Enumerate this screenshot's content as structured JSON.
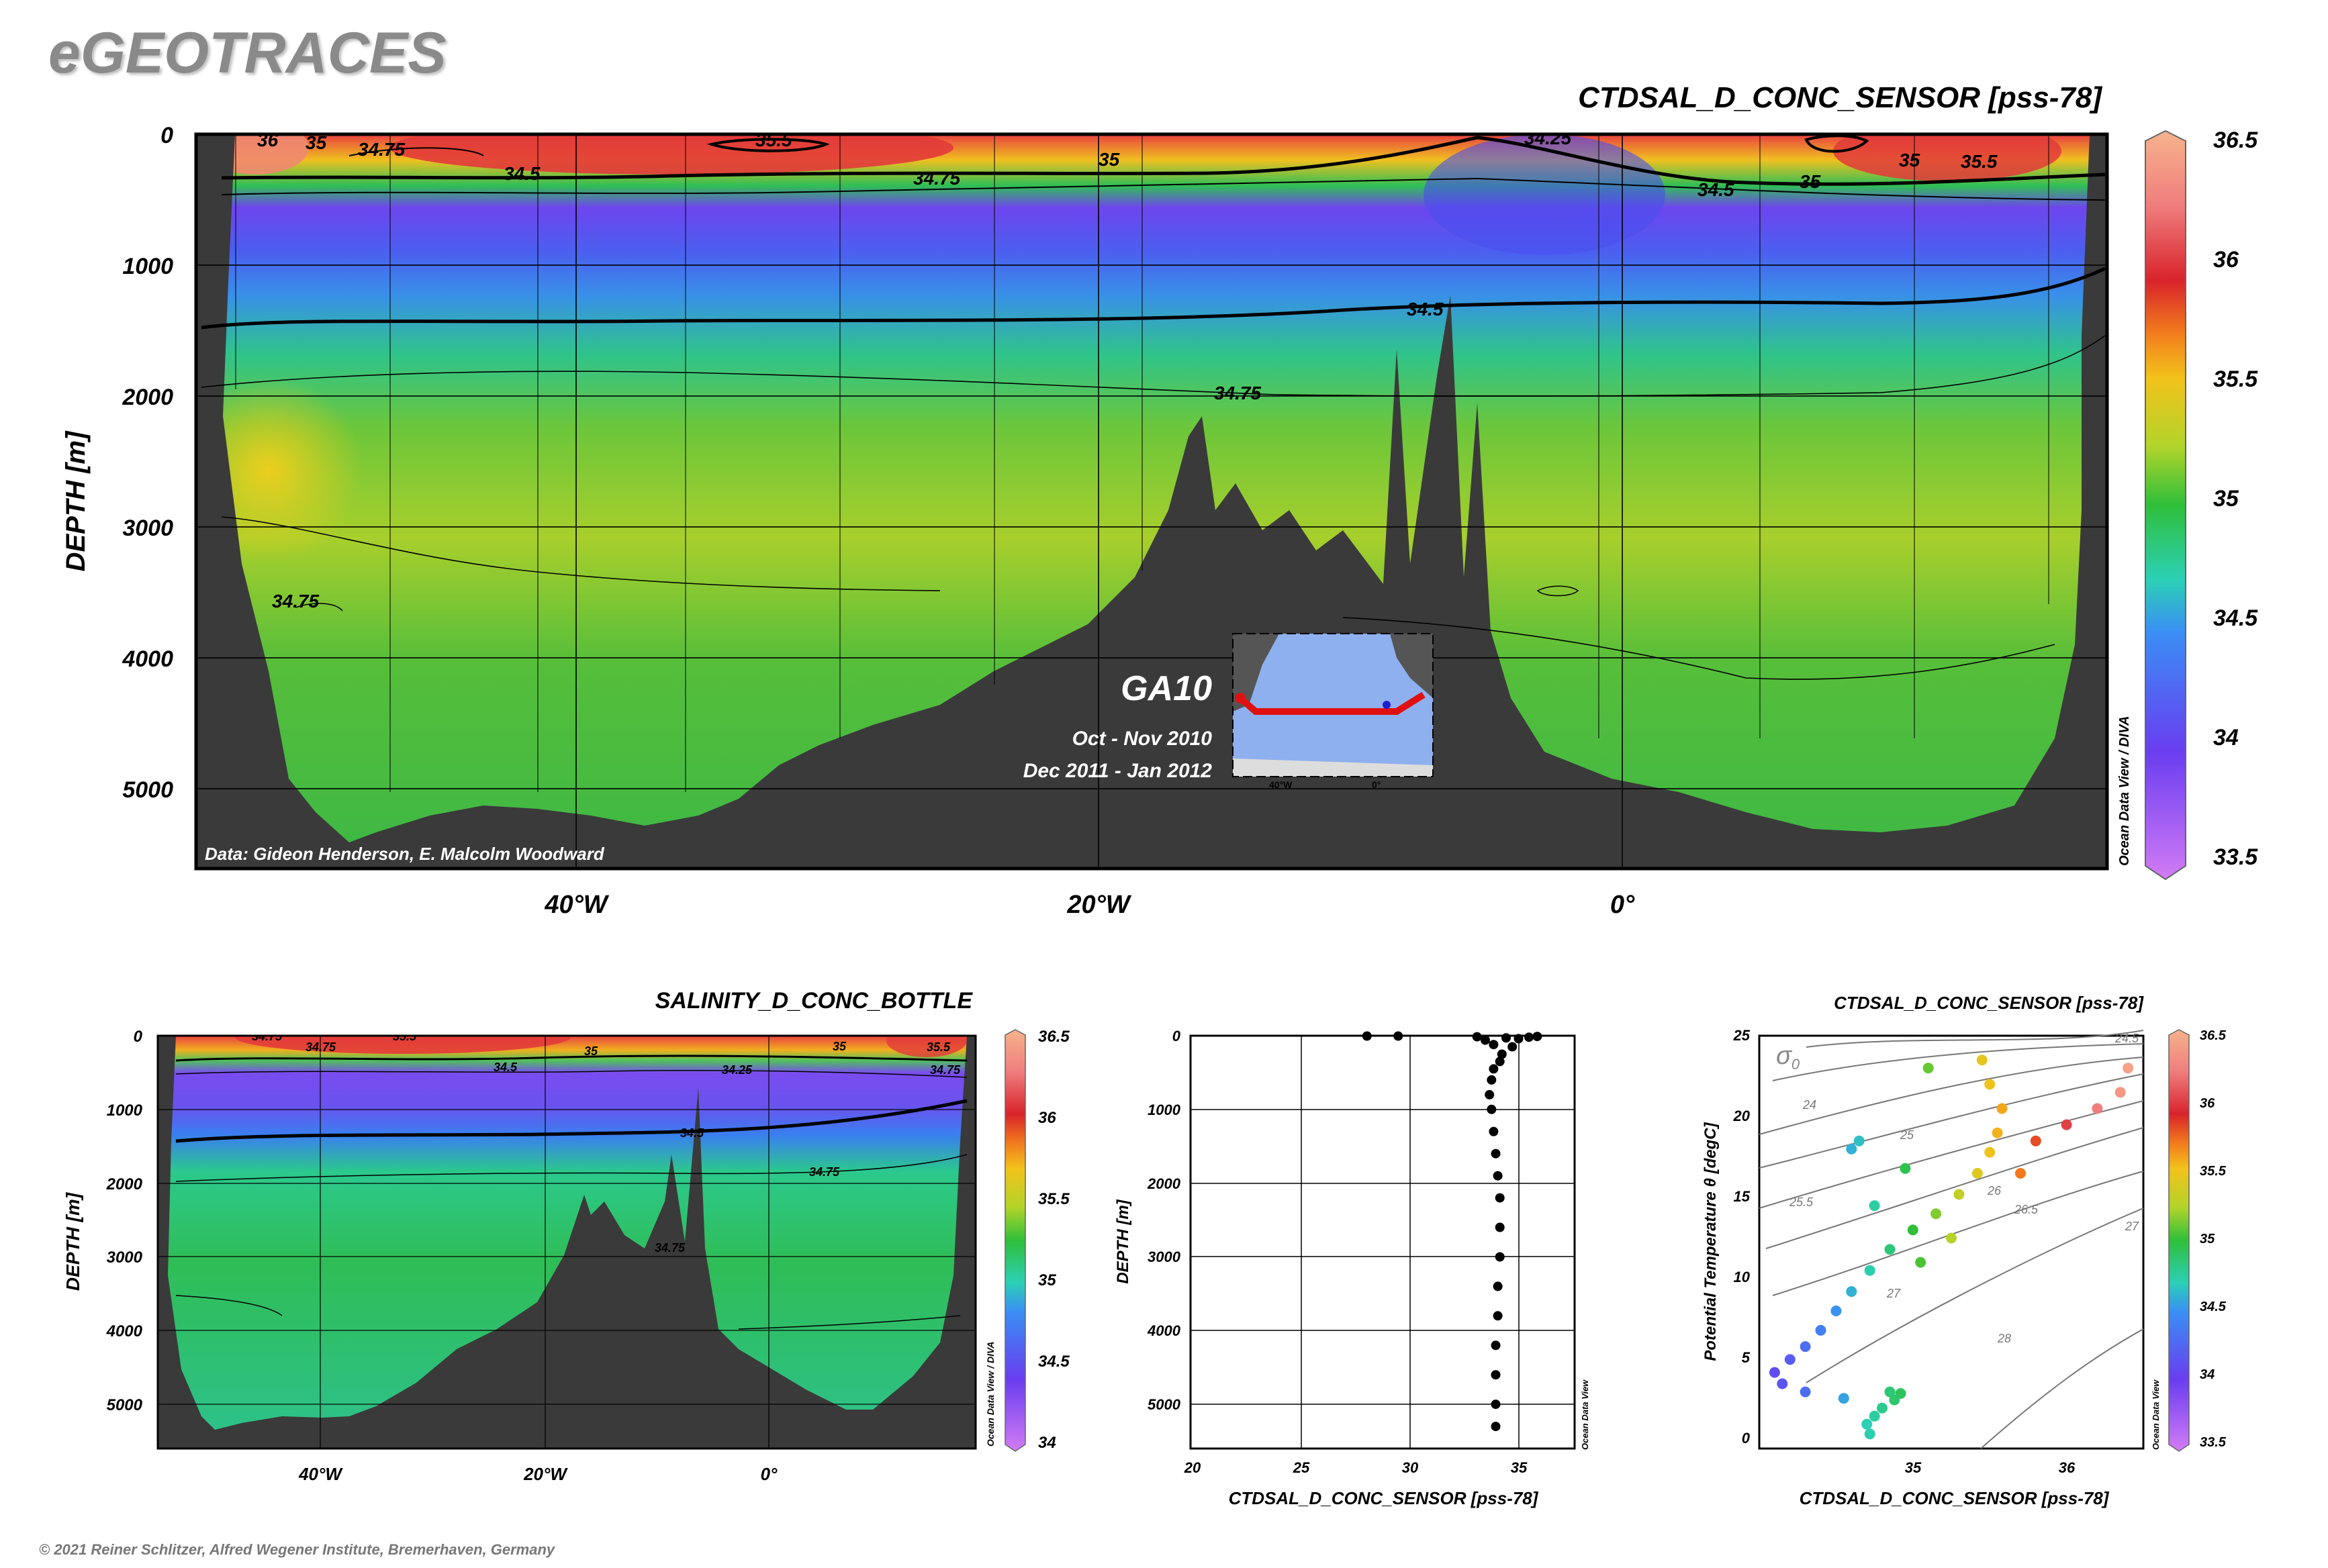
{
  "brand": {
    "logo": "eGEOTRACES"
  },
  "footer": {
    "copyright": "© 2021 Reiner Schlitzer, Alfred Wegener Institute, Bremerhaven, Germany"
  },
  "inset_map": {
    "section": "GA10",
    "cruise_1": "Oct - Nov 2010",
    "cruise_2": "Dec 2011 - Jan 2012",
    "ticks": [
      "40°W",
      "0°"
    ]
  },
  "chart_data": [
    {
      "type": "heatmap",
      "title": "CTDSAL_D_CONC_SENSOR [pss-78]",
      "ylabel": "DEPTH [m]",
      "y_ticks": [
        "0",
        "1000",
        "2000",
        "3000",
        "4000",
        "5000"
      ],
      "x_ticks": [
        "40°W",
        "20°W",
        "0°"
      ],
      "ylim": [
        5600,
        0
      ],
      "xlim": [
        -54,
        18
      ],
      "credit": "Data: Gideon Henderson, E. Malcolm Woodward",
      "watermark": "Ocean Data View / DIVA",
      "colorbar": {
        "min": 33.5,
        "max": 36.5,
        "ticks": [
          "33.5",
          "34",
          "34.5",
          "35",
          "35.5",
          "36",
          "36.5"
        ]
      },
      "contour_labels": [
        "36",
        "35",
        "34.75",
        "35.5",
        "35",
        "34.25",
        "35",
        "35.5",
        "34.5",
        "34.75",
        "35",
        "34.5",
        "34.75",
        "34.5",
        "34.75",
        "34.75"
      ]
    },
    {
      "type": "heatmap",
      "title": "SALINITY_D_CONC_BOTTLE",
      "ylabel": "DEPTH [m]",
      "y_ticks": [
        "0",
        "1000",
        "2000",
        "3000",
        "4000",
        "5000"
      ],
      "x_ticks": [
        "40°W",
        "20°W",
        "0°"
      ],
      "ylim": [
        5600,
        0
      ],
      "xlim": [
        -54,
        18
      ],
      "watermark": "Ocean Data View / DIVA",
      "colorbar": {
        "min": 34,
        "max": 36.5,
        "ticks": [
          "34",
          "34.5",
          "35",
          "35.5",
          "36",
          "36.5"
        ]
      },
      "contour_labels": [
        "34.75",
        "35.5",
        "34.75",
        "35",
        "34.5",
        "34.25",
        "35",
        "35.5",
        "34.75",
        "34.5",
        "34.75",
        "34.75"
      ]
    },
    {
      "type": "scatter",
      "xlabel": "CTDSAL_D_CONC_SENSOR [pss-78]",
      "ylabel": "DEPTH [m]",
      "x_ticks": [
        "20",
        "25",
        "30",
        "35"
      ],
      "y_ticks": [
        "0",
        "1000",
        "2000",
        "3000",
        "4000",
        "5000"
      ],
      "xlim": [
        20,
        38.5
      ],
      "ylim": [
        5600,
        0
      ],
      "watermark": "Ocean Data View",
      "points": [
        {
          "x": 28.5,
          "y": 5
        },
        {
          "x": 30.0,
          "y": 5
        },
        {
          "x": 33.8,
          "y": 15
        },
        {
          "x": 34.2,
          "y": 60
        },
        {
          "x": 34.6,
          "y": 120
        },
        {
          "x": 35.2,
          "y": 30
        },
        {
          "x": 35.8,
          "y": 40
        },
        {
          "x": 36.3,
          "y": 20
        },
        {
          "x": 36.7,
          "y": 10
        },
        {
          "x": 35.5,
          "y": 150
        },
        {
          "x": 35.0,
          "y": 250
        },
        {
          "x": 34.9,
          "y": 350
        },
        {
          "x": 34.6,
          "y": 450
        },
        {
          "x": 34.5,
          "y": 600
        },
        {
          "x": 34.4,
          "y": 800
        },
        {
          "x": 34.5,
          "y": 1000
        },
        {
          "x": 34.6,
          "y": 1300
        },
        {
          "x": 34.7,
          "y": 1600
        },
        {
          "x": 34.8,
          "y": 1900
        },
        {
          "x": 34.9,
          "y": 2200
        },
        {
          "x": 34.9,
          "y": 2600
        },
        {
          "x": 34.9,
          "y": 3000
        },
        {
          "x": 34.8,
          "y": 3400
        },
        {
          "x": 34.8,
          "y": 3800
        },
        {
          "x": 34.7,
          "y": 4200
        },
        {
          "x": 34.7,
          "y": 4600
        },
        {
          "x": 34.7,
          "y": 5000
        },
        {
          "x": 34.7,
          "y": 5300
        }
      ]
    },
    {
      "type": "scatter",
      "title": "CTDSAL_D_CONC_SENSOR [pss-78]",
      "xlabel": "CTDSAL_D_CONC_SENSOR [pss-78]",
      "ylabel": "Potential Temperature θ [degC]",
      "x_ticks": [
        "35",
        "36"
      ],
      "y_ticks": [
        "0",
        "5",
        "10",
        "15",
        "20",
        "25"
      ],
      "xlim": [
        34.0,
        36.5
      ],
      "ylim": [
        -0.5,
        25
      ],
      "isopycnal_symbol": "σ",
      "isopycnal_subscript": "0",
      "isopycnal_labels": [
        "24",
        "24.5",
        "25",
        "25.5",
        "26",
        "26.5",
        "27",
        "27",
        "28"
      ],
      "watermark": "Ocean Data View",
      "colorbar": {
        "min": 33.5,
        "max": 36.5,
        "ticks": [
          "33.5",
          "34",
          "34.5",
          "35",
          "35.5",
          "36",
          "36.5"
        ]
      },
      "points": [
        {
          "x": 34.72,
          "y": 0.4
        },
        {
          "x": 34.7,
          "y": 1.0
        },
        {
          "x": 34.75,
          "y": 1.5
        },
        {
          "x": 34.8,
          "y": 2.0
        },
        {
          "x": 34.88,
          "y": 2.5
        },
        {
          "x": 34.92,
          "y": 2.9
        },
        {
          "x": 34.85,
          "y": 3.0
        },
        {
          "x": 34.55,
          "y": 2.6
        },
        {
          "x": 34.3,
          "y": 3.0
        },
        {
          "x": 34.15,
          "y": 3.5
        },
        {
          "x": 34.1,
          "y": 4.2
        },
        {
          "x": 34.2,
          "y": 5.0
        },
        {
          "x": 34.3,
          "y": 5.8
        },
        {
          "x": 34.4,
          "y": 6.8
        },
        {
          "x": 34.5,
          "y": 8.0
        },
        {
          "x": 34.6,
          "y": 9.2
        },
        {
          "x": 34.72,
          "y": 10.5
        },
        {
          "x": 34.85,
          "y": 11.8
        },
        {
          "x": 35.0,
          "y": 13.0
        },
        {
          "x": 35.15,
          "y": 14.0
        },
        {
          "x": 35.3,
          "y": 15.2
        },
        {
          "x": 35.42,
          "y": 16.5
        },
        {
          "x": 35.5,
          "y": 17.8
        },
        {
          "x": 35.55,
          "y": 19.0
        },
        {
          "x": 35.58,
          "y": 20.5
        },
        {
          "x": 35.5,
          "y": 22.0
        },
        {
          "x": 35.45,
          "y": 23.5
        },
        {
          "x": 35.1,
          "y": 23.0
        },
        {
          "x": 34.6,
          "y": 18.0
        },
        {
          "x": 34.65,
          "y": 18.5
        },
        {
          "x": 34.95,
          "y": 16.8
        },
        {
          "x": 34.75,
          "y": 14.5
        },
        {
          "x": 35.8,
          "y": 18.5
        },
        {
          "x": 36.0,
          "y": 19.5
        },
        {
          "x": 36.2,
          "y": 20.5
        },
        {
          "x": 36.35,
          "y": 21.5
        },
        {
          "x": 36.4,
          "y": 23.0
        },
        {
          "x": 35.7,
          "y": 16.5
        },
        {
          "x": 35.25,
          "y": 12.5
        },
        {
          "x": 35.05,
          "y": 11.0
        }
      ]
    }
  ]
}
